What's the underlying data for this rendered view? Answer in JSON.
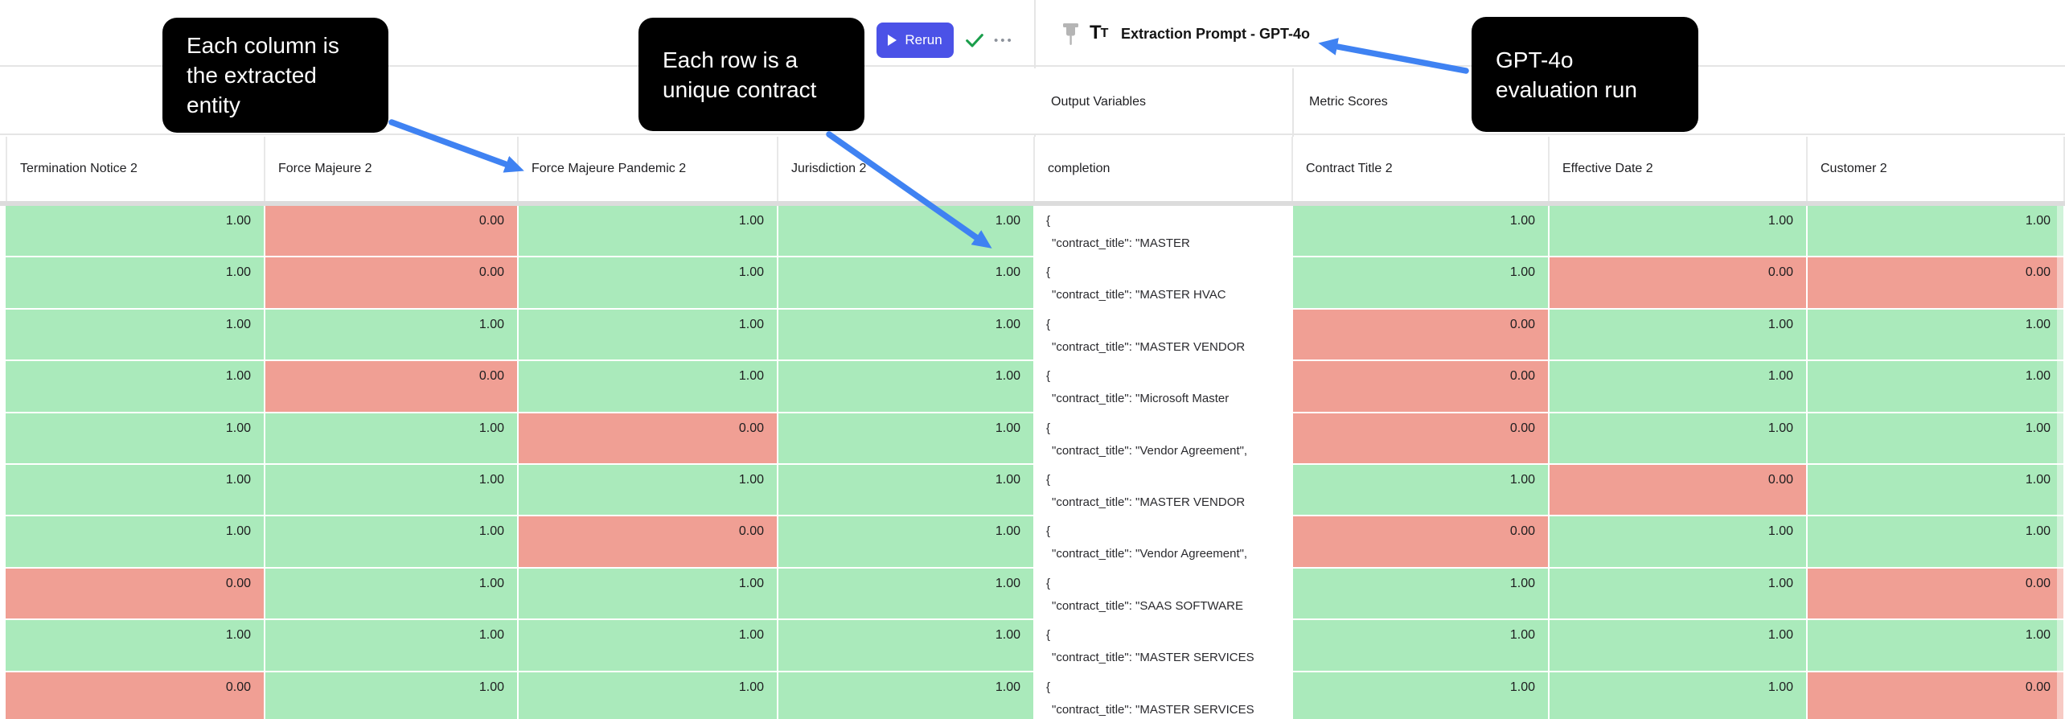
{
  "toolbar": {
    "rerun_label": "Rerun",
    "play_icon": "play-triangle",
    "check_icon": "checkmark",
    "more_glyph": "•••"
  },
  "run_header": {
    "pin_icon": "pushpin",
    "type_icon_big": "T",
    "type_icon_small": "T",
    "title": "Extraction Prompt - GPT-4o"
  },
  "annotations": {
    "callout_column": "Each column is\nthe extracted\nentity",
    "callout_row": "Each row is a\nunique contract",
    "callout_run": "GPT-4o\nevaluation run"
  },
  "sections": {
    "output_variables": "Output Variables",
    "metric_scores": "Metric Scores"
  },
  "table": {
    "columns": [
      "Termination Notice 2",
      "Force Majeure 2",
      "Force Majeure Pandemic 2",
      "Jurisdiction 2",
      "completion",
      "Contract Title 2",
      "Effective Date 2",
      "Customer 2"
    ],
    "rows": [
      {
        "cells": [
          {
            "v": "1.00",
            "s": "pass"
          },
          {
            "v": "0.00",
            "s": "fail"
          },
          {
            "v": "1.00",
            "s": "pass"
          },
          {
            "v": "1.00",
            "s": "pass"
          },
          {
            "json": [
              "{",
              "\"contract_title\": \"MASTER"
            ]
          },
          {
            "v": "1.00",
            "s": "pass"
          },
          {
            "v": "1.00",
            "s": "pass"
          },
          {
            "v": "1.00",
            "s": "pass"
          }
        ]
      },
      {
        "cells": [
          {
            "v": "1.00",
            "s": "pass"
          },
          {
            "v": "0.00",
            "s": "fail"
          },
          {
            "v": "1.00",
            "s": "pass"
          },
          {
            "v": "1.00",
            "s": "pass"
          },
          {
            "json": [
              "{",
              "\"contract_title\": \"MASTER HVAC"
            ]
          },
          {
            "v": "1.00",
            "s": "pass"
          },
          {
            "v": "0.00",
            "s": "fail"
          },
          {
            "v": "0.00",
            "s": "fail"
          }
        ]
      },
      {
        "cells": [
          {
            "v": "1.00",
            "s": "pass"
          },
          {
            "v": "1.00",
            "s": "pass"
          },
          {
            "v": "1.00",
            "s": "pass"
          },
          {
            "v": "1.00",
            "s": "pass"
          },
          {
            "json": [
              "{",
              "\"contract_title\": \"MASTER VENDOR"
            ]
          },
          {
            "v": "0.00",
            "s": "fail"
          },
          {
            "v": "1.00",
            "s": "pass"
          },
          {
            "v": "1.00",
            "s": "pass"
          }
        ]
      },
      {
        "cells": [
          {
            "v": "1.00",
            "s": "pass"
          },
          {
            "v": "0.00",
            "s": "fail"
          },
          {
            "v": "1.00",
            "s": "pass"
          },
          {
            "v": "1.00",
            "s": "pass"
          },
          {
            "json": [
              "{",
              "\"contract_title\": \"Microsoft Master"
            ]
          },
          {
            "v": "0.00",
            "s": "fail"
          },
          {
            "v": "1.00",
            "s": "pass"
          },
          {
            "v": "1.00",
            "s": "pass"
          }
        ]
      },
      {
        "cells": [
          {
            "v": "1.00",
            "s": "pass"
          },
          {
            "v": "1.00",
            "s": "pass"
          },
          {
            "v": "0.00",
            "s": "fail"
          },
          {
            "v": "1.00",
            "s": "pass"
          },
          {
            "json": [
              "{",
              "\"contract_title\": \"Vendor Agreement\","
            ]
          },
          {
            "v": "0.00",
            "s": "fail"
          },
          {
            "v": "1.00",
            "s": "pass"
          },
          {
            "v": "1.00",
            "s": "pass"
          }
        ]
      },
      {
        "cells": [
          {
            "v": "1.00",
            "s": "pass"
          },
          {
            "v": "1.00",
            "s": "pass"
          },
          {
            "v": "1.00",
            "s": "pass"
          },
          {
            "v": "1.00",
            "s": "pass"
          },
          {
            "json": [
              "{",
              "\"contract_title\": \"MASTER VENDOR"
            ]
          },
          {
            "v": "1.00",
            "s": "pass"
          },
          {
            "v": "0.00",
            "s": "fail"
          },
          {
            "v": "1.00",
            "s": "pass"
          }
        ]
      },
      {
        "cells": [
          {
            "v": "1.00",
            "s": "pass"
          },
          {
            "v": "1.00",
            "s": "pass"
          },
          {
            "v": "0.00",
            "s": "fail"
          },
          {
            "v": "1.00",
            "s": "pass"
          },
          {
            "json": [
              "{",
              "\"contract_title\": \"Vendor Agreement\","
            ]
          },
          {
            "v": "0.00",
            "s": "fail"
          },
          {
            "v": "1.00",
            "s": "pass"
          },
          {
            "v": "1.00",
            "s": "pass"
          }
        ]
      },
      {
        "cells": [
          {
            "v": "0.00",
            "s": "fail"
          },
          {
            "v": "1.00",
            "s": "pass"
          },
          {
            "v": "1.00",
            "s": "pass"
          },
          {
            "v": "1.00",
            "s": "pass"
          },
          {
            "json": [
              "{",
              "\"contract_title\": \"SAAS SOFTWARE"
            ]
          },
          {
            "v": "1.00",
            "s": "pass"
          },
          {
            "v": "1.00",
            "s": "pass"
          },
          {
            "v": "0.00",
            "s": "fail"
          }
        ]
      },
      {
        "cells": [
          {
            "v": "1.00",
            "s": "pass"
          },
          {
            "v": "1.00",
            "s": "pass"
          },
          {
            "v": "1.00",
            "s": "pass"
          },
          {
            "v": "1.00",
            "s": "pass"
          },
          {
            "json": [
              "{",
              "\"contract_title\": \"MASTER SERVICES"
            ]
          },
          {
            "v": "1.00",
            "s": "pass"
          },
          {
            "v": "1.00",
            "s": "pass"
          },
          {
            "v": "1.00",
            "s": "pass"
          }
        ]
      },
      {
        "cells": [
          {
            "v": "0.00",
            "s": "fail"
          },
          {
            "v": "1.00",
            "s": "pass"
          },
          {
            "v": "1.00",
            "s": "pass"
          },
          {
            "v": "1.00",
            "s": "pass"
          },
          {
            "json": [
              "{",
              "\"contract_title\": \"MASTER SERVICES"
            ]
          },
          {
            "v": "1.00",
            "s": "pass"
          },
          {
            "v": "1.00",
            "s": "pass"
          },
          {
            "v": "0.00",
            "s": "fail"
          }
        ]
      }
    ]
  },
  "colors": {
    "pass": "#aaeabb",
    "fail": "#f09f94",
    "accent": "#4b52e7",
    "arrow": "#3f82f2",
    "check": "#1a9e4b",
    "callout": "#000000"
  }
}
